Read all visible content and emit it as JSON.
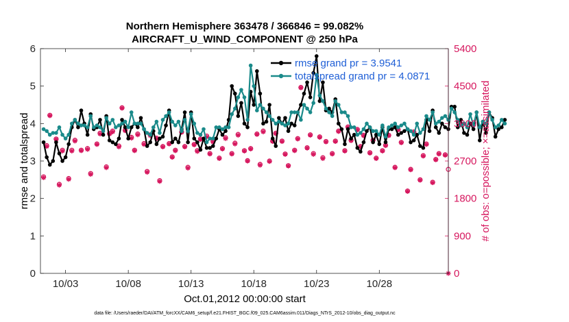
{
  "chart_data": {
    "type": "line",
    "title": "Northern Hemisphere 363478 / 366846 = 99.082%",
    "subtitle": "AIRCRAFT_U_WIND_COMPONENT @ 250 hPa",
    "xlabel": "Oct.01,2012 00:00:00 start",
    "ylabel_left": "rmse and totalspread",
    "ylabel_right": "# of obs: o=possible; ×=assimilated",
    "footer": "data file: /Users/raeder/DAI/ATM_forcXX/CAM6_setup/f.e21.FHIST_BGC.f09_025.CAM6assim.011/Diags_NTrS_2012-10/obs_diag_output.nc",
    "xlim": [
      1,
      33.5
    ],
    "ylim_left": [
      0,
      6
    ],
    "ylim_right": [
      0,
      5400
    ],
    "xticks": [
      3,
      8,
      13,
      18,
      23,
      28
    ],
    "xtick_labels": [
      "10/03",
      "10/08",
      "10/13",
      "10/18",
      "10/23",
      "10/28"
    ],
    "yticks_left": [
      0,
      1,
      2,
      3,
      4,
      5,
      6
    ],
    "yticks_right": [
      0,
      900,
      1800,
      2700,
      3600,
      4500,
      5400
    ],
    "legend": [
      "rmse grand pr = 3.9541",
      "totalspread grand pr = 4.0871"
    ],
    "colors": {
      "rmse": "#000000",
      "spread": "#1a8a8a",
      "obs": "#d6175e",
      "right_axis": "#d6175e"
    },
    "t_start": 1.25,
    "t_step": 0.25,
    "series": [
      {
        "name": "rmse",
        "values": [
          3.5,
          3.1,
          2.9,
          3.0,
          3.5,
          3.2,
          3.0,
          3.1,
          3.45,
          3.9,
          4.1,
          3.9,
          4.35,
          4.0,
          3.7,
          4.25,
          3.85,
          3.9,
          4.1,
          3.7,
          4.2,
          3.55,
          3.5,
          3.45,
          3.6,
          4.1,
          3.9,
          3.6,
          3.9,
          4.0,
          3.9,
          4.15,
          3.85,
          3.4,
          3.5,
          3.8,
          3.45,
          3.6,
          3.65,
          3.95,
          4.35,
          3.5,
          3.6,
          3.5,
          3.85,
          4.3,
          3.5,
          4.3,
          3.6,
          3.5,
          3.3,
          3.6,
          3.35,
          3.35,
          3.4,
          3.6,
          3.85,
          3.7,
          3.8,
          4.1,
          5.0,
          4.8,
          4.2,
          4.55,
          4.0,
          3.9,
          4.85,
          4.5,
          5.4,
          4.8,
          4.0,
          4.05,
          4.5,
          3.6,
          3.4,
          4.15,
          4.0,
          4.15,
          3.8,
          4.0,
          3.95,
          4.3,
          4.5,
          4.8,
          5.1,
          4.7,
          5.35,
          5.8,
          4.6,
          5.1,
          4.35,
          4.4,
          4.3,
          4.65,
          4.0,
          3.85,
          3.45,
          3.85,
          3.6,
          3.7,
          3.35,
          3.25,
          3.5,
          3.8,
          3.9,
          3.5,
          3.7,
          3.45,
          3.9,
          3.5,
          3.85,
          3.85,
          3.9,
          3.7,
          3.75,
          3.8,
          3.85,
          3.5,
          3.55,
          3.7,
          3.4,
          3.35,
          4.1,
          3.8,
          4.35,
          3.9,
          3.75,
          4.0,
          3.9,
          3.85,
          4.45,
          4.45,
          3.9,
          4.1,
          3.75,
          3.7,
          4.0,
          3.85,
          4.3,
          3.55,
          4.05,
          3.75,
          4.3,
          4.15,
          3.65,
          3.85,
          3.9,
          4.1
        ]
      },
      {
        "name": "totalspread",
        "values": [
          3.85,
          3.8,
          3.7,
          3.75,
          3.75,
          3.9,
          3.7,
          3.6,
          3.7,
          4.0,
          4.1,
          4.0,
          3.95,
          3.95,
          3.9,
          4.2,
          3.9,
          3.95,
          3.9,
          3.8,
          4.15,
          4.0,
          4.1,
          3.9,
          3.95,
          4.0,
          4.05,
          3.9,
          4.3,
          4.0,
          4.0,
          4.0,
          3.85,
          3.75,
          3.7,
          3.9,
          4.05,
          3.75,
          4.1,
          4.2,
          4.3,
          4.05,
          3.95,
          4.05,
          3.8,
          4.1,
          3.8,
          4.25,
          4.0,
          3.75,
          3.7,
          3.85,
          3.5,
          3.6,
          3.6,
          3.9,
          3.9,
          3.85,
          3.9,
          3.9,
          4.25,
          4.4,
          4.7,
          4.9,
          4.7,
          4.1,
          5.55,
          5.0,
          4.35,
          4.5,
          4.4,
          4.3,
          4.2,
          4.1,
          4.0,
          4.05,
          4.0,
          3.95,
          4.0,
          4.3,
          4.3,
          4.3,
          4.1,
          4.5,
          4.4,
          4.3,
          4.55,
          5.3,
          4.75,
          4.6,
          4.4,
          4.3,
          4.2,
          4.6,
          4.5,
          4.3,
          4.3,
          4.2,
          3.9,
          3.9,
          3.7,
          3.75,
          3.85,
          4.0,
          3.9,
          3.8,
          3.8,
          3.7,
          3.95,
          3.65,
          3.9,
          3.95,
          4.0,
          3.9,
          3.95,
          4.0,
          3.85,
          3.8,
          3.7,
          4.0,
          3.75,
          3.85,
          4.2,
          4.1,
          4.3,
          4.0,
          4.05,
          4.15,
          4.2,
          4.1,
          4.4,
          4.3,
          4.1,
          3.95,
          4.0,
          3.9,
          4.25,
          3.95,
          4.3,
          3.9,
          4.05,
          4.0,
          4.3,
          4.1,
          3.9,
          3.95,
          4.1,
          4.0
        ]
      },
      {
        "name": "obs_possible",
        "pairs": [
          [
            1.25,
            2320
          ],
          [
            1.5,
            3070
          ],
          [
            1.75,
            3800
          ],
          [
            2.25,
            3230
          ],
          [
            2.5,
            2140
          ],
          [
            2.75,
            2960
          ],
          [
            3.25,
            2280
          ],
          [
            3.5,
            2960
          ],
          [
            3.75,
            3200
          ],
          [
            4.25,
            2960
          ],
          [
            4.75,
            3000
          ],
          [
            5.0,
            2400
          ],
          [
            5.5,
            3110
          ],
          [
            5.75,
            3370
          ],
          [
            6.25,
            2560
          ],
          [
            6.5,
            3360
          ],
          [
            6.75,
            3420
          ],
          [
            7.25,
            3060
          ],
          [
            7.5,
            3980
          ],
          [
            7.75,
            3440
          ],
          [
            8.25,
            3270
          ],
          [
            8.5,
            2960
          ],
          [
            8.75,
            3350
          ],
          [
            9.25,
            3120
          ],
          [
            9.5,
            2450
          ],
          [
            9.75,
            3330
          ],
          [
            10.25,
            3250
          ],
          [
            10.5,
            2230
          ],
          [
            10.75,
            3050
          ],
          [
            11.25,
            3120
          ],
          [
            11.5,
            2800
          ],
          [
            11.75,
            2960
          ],
          [
            12.25,
            3400
          ],
          [
            12.5,
            3050
          ],
          [
            12.75,
            2550
          ],
          [
            13.25,
            3100
          ],
          [
            13.5,
            2950
          ],
          [
            13.75,
            3230
          ],
          [
            14.25,
            3300
          ],
          [
            14.5,
            2880
          ],
          [
            14.75,
            3170
          ],
          [
            15.25,
            2770
          ],
          [
            15.5,
            3000
          ],
          [
            15.75,
            3260
          ],
          [
            16.25,
            2880
          ],
          [
            16.5,
            3130
          ],
          [
            16.75,
            3340
          ],
          [
            17.25,
            2950
          ],
          [
            17.5,
            2710
          ],
          [
            17.75,
            3000
          ],
          [
            18.25,
            3350
          ],
          [
            18.5,
            2620
          ],
          [
            18.75,
            3420
          ],
          [
            19.25,
            2700
          ],
          [
            19.5,
            3180
          ],
          [
            19.75,
            3370
          ],
          [
            20.25,
            3180
          ],
          [
            20.5,
            2870
          ],
          [
            20.75,
            2590
          ],
          [
            21.25,
            2960
          ],
          [
            21.5,
            3240
          ],
          [
            21.75,
            4470
          ],
          [
            22.25,
            3020
          ],
          [
            22.5,
            3330
          ],
          [
            22.75,
            2880
          ],
          [
            23.25,
            3280
          ],
          [
            23.5,
            2780
          ],
          [
            23.75,
            3170
          ],
          [
            24.25,
            2880
          ],
          [
            24.5,
            3180
          ],
          [
            24.75,
            3420
          ],
          [
            25.25,
            2950
          ],
          [
            25.5,
            3520
          ],
          [
            25.75,
            3200
          ],
          [
            26.25,
            3460
          ],
          [
            26.5,
            3050
          ],
          [
            26.75,
            3320
          ],
          [
            27.25,
            2900
          ],
          [
            27.5,
            3200
          ],
          [
            27.75,
            2770
          ],
          [
            28.25,
            2950
          ],
          [
            28.5,
            3080
          ],
          [
            28.75,
            3320
          ],
          [
            29.25,
            2550
          ],
          [
            29.5,
            3460
          ],
          [
            29.75,
            3150
          ],
          [
            30.25,
            1980
          ],
          [
            30.5,
            2500
          ],
          [
            30.75,
            3400
          ],
          [
            31.25,
            2250
          ],
          [
            31.5,
            2830
          ],
          [
            31.75,
            3110
          ],
          [
            32.25,
            2190
          ],
          [
            32.5,
            2740
          ],
          [
            32.75,
            2880
          ],
          [
            33.25,
            2850
          ],
          [
            33.5,
            2500
          ]
        ]
      },
      {
        "name": "obs_assimilated",
        "pairs": [
          [
            1.25,
            2300
          ],
          [
            1.5,
            3050
          ],
          [
            1.75,
            3790
          ],
          [
            2.25,
            3220
          ],
          [
            2.5,
            2120
          ],
          [
            2.75,
            2940
          ],
          [
            3.25,
            2260
          ],
          [
            3.5,
            2940
          ],
          [
            3.75,
            3180
          ],
          [
            4.25,
            2950
          ],
          [
            4.75,
            2980
          ],
          [
            5.0,
            2380
          ],
          [
            5.5,
            3100
          ],
          [
            5.75,
            3350
          ],
          [
            6.25,
            2540
          ],
          [
            6.5,
            3350
          ],
          [
            6.75,
            3400
          ],
          [
            7.25,
            3040
          ],
          [
            7.5,
            3970
          ],
          [
            7.75,
            3430
          ],
          [
            8.25,
            3250
          ],
          [
            8.5,
            2950
          ],
          [
            8.75,
            3330
          ],
          [
            9.25,
            3100
          ],
          [
            9.5,
            2430
          ],
          [
            9.75,
            3310
          ],
          [
            10.25,
            3240
          ],
          [
            10.5,
            2210
          ],
          [
            10.75,
            3040
          ],
          [
            11.25,
            3110
          ],
          [
            11.5,
            2790
          ],
          [
            11.75,
            2950
          ],
          [
            12.25,
            3390
          ],
          [
            12.5,
            3040
          ],
          [
            12.75,
            2530
          ],
          [
            13.25,
            3090
          ],
          [
            13.5,
            2930
          ],
          [
            13.75,
            3220
          ],
          [
            14.25,
            3280
          ],
          [
            14.5,
            2870
          ],
          [
            14.75,
            3160
          ],
          [
            15.25,
            2760
          ],
          [
            15.5,
            2990
          ],
          [
            15.75,
            3240
          ],
          [
            16.25,
            2870
          ],
          [
            16.5,
            3110
          ],
          [
            16.75,
            3320
          ],
          [
            17.25,
            2940
          ],
          [
            17.5,
            2700
          ],
          [
            17.75,
            2990
          ],
          [
            18.25,
            3340
          ],
          [
            18.5,
            2600
          ],
          [
            18.75,
            3400
          ],
          [
            19.25,
            2690
          ],
          [
            19.5,
            3170
          ],
          [
            19.75,
            3360
          ],
          [
            20.25,
            3170
          ],
          [
            20.5,
            2860
          ],
          [
            20.75,
            2580
          ],
          [
            21.25,
            2950
          ],
          [
            21.5,
            3230
          ],
          [
            21.75,
            4460
          ],
          [
            22.25,
            3010
          ],
          [
            22.5,
            3320
          ],
          [
            22.75,
            2860
          ],
          [
            23.25,
            3270
          ],
          [
            23.5,
            2760
          ],
          [
            23.75,
            3160
          ],
          [
            24.25,
            2870
          ],
          [
            24.5,
            3170
          ],
          [
            24.75,
            3410
          ],
          [
            25.25,
            2940
          ],
          [
            25.5,
            3510
          ],
          [
            25.75,
            3190
          ],
          [
            26.25,
            3450
          ],
          [
            26.5,
            3040
          ],
          [
            26.75,
            3310
          ],
          [
            27.25,
            2890
          ],
          [
            27.5,
            3190
          ],
          [
            27.75,
            2760
          ],
          [
            28.25,
            2940
          ],
          [
            28.5,
            3070
          ],
          [
            28.75,
            3310
          ],
          [
            29.25,
            2540
          ],
          [
            29.5,
            3450
          ],
          [
            29.75,
            3140
          ],
          [
            30.25,
            1970
          ],
          [
            30.5,
            2490
          ],
          [
            30.75,
            3390
          ],
          [
            31.25,
            2240
          ],
          [
            31.5,
            2820
          ],
          [
            31.75,
            3100
          ],
          [
            32.25,
            2180
          ],
          [
            32.5,
            2730
          ],
          [
            32.75,
            2870
          ],
          [
            33.25,
            2840
          ],
          [
            33.5,
            0
          ]
        ]
      }
    ]
  }
}
